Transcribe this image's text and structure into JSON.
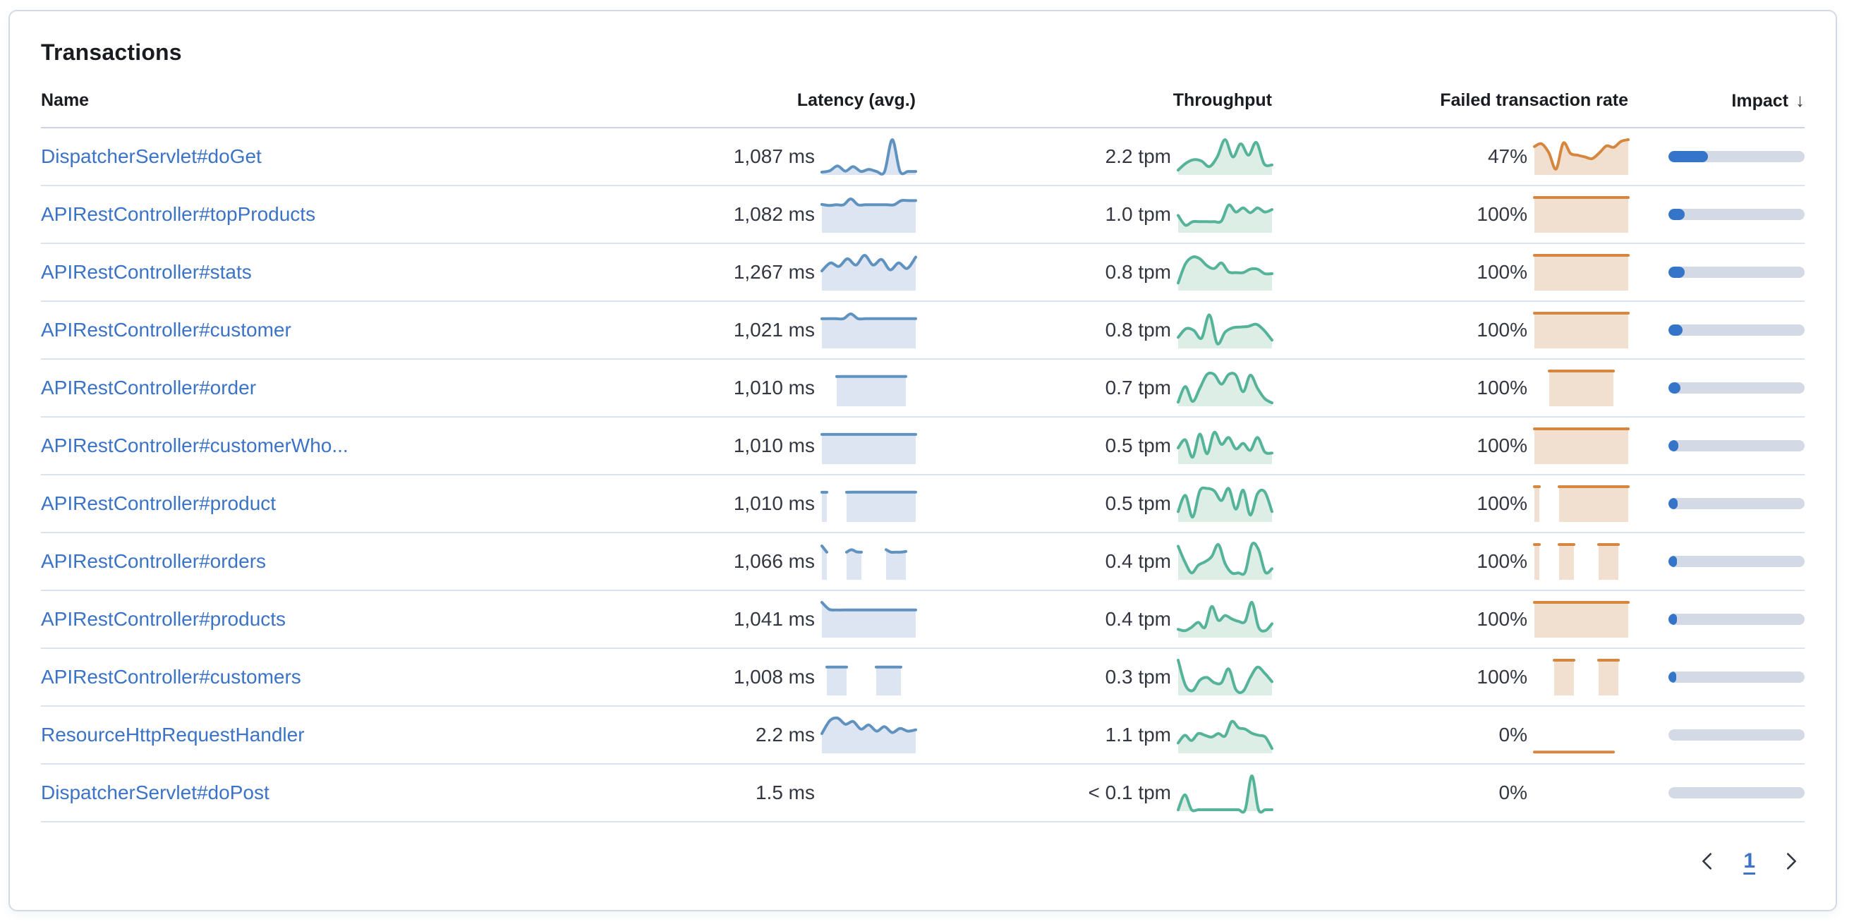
{
  "panel": {
    "title": "Transactions"
  },
  "colors": {
    "link": "#3b73c7",
    "latency_line": "#6092c0",
    "latency_fill": "#dce5f1",
    "throughput_line": "#54b399",
    "throughput_fill": "#ddeee7",
    "failed_line": "#d6873f",
    "failed_fill": "#f1e0cf",
    "impact_fill": "#3575c9",
    "impact_track": "#d3dae6"
  },
  "table": {
    "columns": [
      "Name",
      "Latency (avg.)",
      "Throughput",
      "Failed transaction rate",
      "Impact"
    ],
    "sort": {
      "column": "Impact",
      "direction": "desc",
      "icon": "↓"
    },
    "rows": [
      {
        "name": "DispatcherServlet#doGet",
        "latency": "1,087 ms",
        "throughput": "2.2 tpm",
        "failed_rate": "47%",
        "impact_pct": 29,
        "latency_spark": [
          0.06,
          0.1,
          0.24,
          0.09,
          0.22,
          0.08,
          0.14,
          0.08,
          0.07,
          1.0,
          0.08,
          0.08,
          0.08
        ],
        "throughput_spark": [
          0.12,
          0.32,
          0.42,
          0.38,
          0.22,
          0.5,
          1.0,
          0.5,
          0.88,
          0.55,
          0.92,
          0.3,
          0.27
        ],
        "failed_spark": [
          0.8,
          0.88,
          0.62,
          0.15,
          0.9,
          0.6,
          0.55,
          0.5,
          0.45,
          0.62,
          0.82,
          0.78,
          0.95,
          1.0
        ]
      },
      {
        "name": "APIRestController#topProducts",
        "latency": "1,082 ms",
        "throughput": "1.0 tpm",
        "failed_rate": "100%",
        "impact_pct": 12,
        "latency_spark": [
          0.8,
          0.77,
          0.79,
          0.79,
          0.96,
          0.79,
          0.79,
          0.79,
          0.79,
          0.79,
          0.79,
          0.91,
          0.91,
          0.91
        ],
        "throughput_spark": [
          0.48,
          0.2,
          0.3,
          0.3,
          0.3,
          0.3,
          0.32,
          0.78,
          0.58,
          0.7,
          0.56,
          0.7,
          0.58,
          0.65
        ],
        "failed_spark": [
          1,
          1
        ]
      },
      {
        "name": "APIRestController#stats",
        "latency": "1,267 ms",
        "throughput": "0.8 tpm",
        "failed_rate": "100%",
        "impact_pct": 12,
        "latency_spark": [
          0.55,
          0.78,
          0.68,
          0.9,
          0.72,
          1.0,
          0.72,
          0.88,
          0.58,
          0.78,
          0.62,
          0.95
        ],
        "throughput_spark": [
          0.2,
          0.75,
          0.95,
          0.9,
          0.7,
          0.62,
          0.78,
          0.52,
          0.5,
          0.5,
          0.6,
          0.6,
          0.47,
          0.47
        ],
        "failed_spark": [
          1,
          1
        ]
      },
      {
        "name": "APIRestController#customer",
        "latency": "1,021 ms",
        "throughput": "0.8 tpm",
        "failed_rate": "100%",
        "impact_pct": 10.5,
        "latency_spark": [
          0.84,
          0.84,
          0.84,
          0.84,
          0.98,
          0.84,
          0.84,
          0.84,
          0.84,
          0.84,
          0.84,
          0.84,
          0.84,
          0.84
        ],
        "throughput_spark": [
          0.3,
          0.55,
          0.5,
          0.28,
          0.95,
          0.12,
          0.45,
          0.58,
          0.6,
          0.62,
          0.68,
          0.5,
          0.22
        ],
        "failed_spark": [
          1,
          1
        ]
      },
      {
        "name": "APIRestController#order",
        "latency": "1,010 ms",
        "throughput": "0.7 tpm",
        "failed_rate": "100%",
        "impact_pct": 9,
        "latency_spark": [
          null,
          null,
          null,
          0.84,
          0.84,
          0.84,
          0.84,
          0.84,
          0.84,
          0.84,
          0.84,
          0.84,
          0.84,
          0.84,
          0.84,
          0.84,
          0.84,
          0.84,
          null,
          null
        ],
        "throughput_spark": [
          0.1,
          0.55,
          0.12,
          0.5,
          0.9,
          0.9,
          0.62,
          0.9,
          0.88,
          0.4,
          0.88,
          0.5,
          0.2,
          0.08
        ],
        "failed_spark": [
          null,
          null,
          null,
          1,
          1,
          1,
          1,
          1,
          1,
          1,
          1,
          1,
          1,
          1,
          1,
          1,
          1,
          null,
          null,
          null
        ]
      },
      {
        "name": "APIRestController#customerWho...",
        "latency": "1,010 ms",
        "throughput": "0.5 tpm",
        "failed_rate": "100%",
        "impact_pct": 7,
        "latency_spark": [
          0.84,
          0.84
        ],
        "throughput_spark": [
          0.45,
          0.68,
          0.18,
          0.85,
          0.28,
          0.9,
          0.55,
          0.75,
          0.42,
          0.58,
          0.38,
          0.75,
          0.33,
          0.3
        ],
        "failed_spark": [
          1,
          1
        ]
      },
      {
        "name": "APIRestController#product",
        "latency": "1,010 ms",
        "throughput": "0.5 tpm",
        "failed_rate": "100%",
        "impact_pct": 6.5,
        "latency_spark": [
          0.84,
          0.84,
          null,
          null,
          null,
          0.84,
          0.84,
          0.84,
          0.84,
          0.84,
          0.84,
          0.84,
          0.84,
          0.84,
          0.84,
          0.84,
          0.84,
          0.84,
          0.84,
          0.84
        ],
        "throughput_spark": [
          0.28,
          0.75,
          0.12,
          0.88,
          0.95,
          0.88,
          0.6,
          0.95,
          0.35,
          0.9,
          0.18,
          0.8,
          0.85,
          0.28
        ],
        "failed_spark": [
          1,
          1,
          null,
          null,
          null,
          1,
          1,
          1,
          1,
          1,
          1,
          1,
          1,
          1,
          1,
          1,
          1,
          1,
          1,
          1
        ]
      },
      {
        "name": "APIRestController#orders",
        "latency": "1,066 ms",
        "throughput": "0.4 tpm",
        "failed_rate": "100%",
        "impact_pct": 6,
        "latency_spark": [
          0.96,
          0.78,
          null,
          null,
          null,
          0.78,
          0.85,
          0.79,
          0.78,
          null,
          null,
          null,
          null,
          0.85,
          0.78,
          0.78,
          0.78,
          0.8,
          null,
          null
        ],
        "throughput_spark": [
          0.95,
          0.5,
          0.18,
          0.4,
          0.5,
          0.65,
          1.0,
          0.45,
          0.18,
          0.18,
          0.2,
          1.0,
          0.85,
          0.2,
          0.3
        ],
        "failed_spark": [
          1,
          1,
          null,
          null,
          null,
          1,
          1,
          1,
          1,
          null,
          null,
          null,
          null,
          1,
          1,
          1,
          1,
          1,
          null,
          null
        ]
      },
      {
        "name": "APIRestController#products",
        "latency": "1,041 ms",
        "throughput": "0.4 tpm",
        "failed_rate": "100%",
        "impact_pct": 6,
        "latency_spark": [
          1.0,
          0.8,
          0.78,
          0.78,
          0.78,
          0.78,
          0.78,
          0.78,
          0.78,
          0.78,
          0.78,
          0.78,
          0.78,
          0.78
        ],
        "throughput_spark": [
          0.22,
          0.18,
          0.28,
          0.42,
          0.28,
          0.88,
          0.48,
          0.62,
          0.52,
          0.45,
          0.45,
          1.0,
          0.28,
          0.18,
          0.38
        ],
        "failed_spark": [
          1,
          1
        ]
      },
      {
        "name": "APIRestController#customers",
        "latency": "1,008 ms",
        "throughput": "0.3 tpm",
        "failed_rate": "100%",
        "impact_pct": 5.5,
        "latency_spark": [
          null,
          0.8,
          0.8,
          0.8,
          0.8,
          0.8,
          null,
          null,
          null,
          null,
          null,
          0.8,
          0.8,
          0.8,
          0.8,
          0.8,
          0.8,
          null,
          null,
          null
        ],
        "throughput_spark": [
          1.0,
          0.28,
          0.12,
          0.42,
          0.5,
          0.35,
          0.35,
          0.75,
          0.15,
          0.1,
          0.5,
          0.8,
          0.62,
          0.38
        ],
        "failed_spark": [
          null,
          null,
          null,
          null,
          1,
          1,
          1,
          1,
          1,
          null,
          null,
          null,
          null,
          1,
          1,
          1,
          1,
          1,
          null,
          null
        ]
      },
      {
        "name": "ResourceHttpRequestHandler",
        "latency": "2.2 ms",
        "throughput": "1.1 tpm",
        "failed_rate": "0%",
        "impact_pct": 0,
        "latency_spark": [
          0.55,
          0.92,
          1.0,
          0.82,
          0.9,
          0.68,
          0.8,
          0.62,
          0.75,
          0.58,
          0.7,
          0.62,
          0.66
        ],
        "throughput_spark": [
          0.28,
          0.5,
          0.35,
          0.55,
          0.5,
          0.45,
          0.55,
          0.48,
          0.9,
          0.72,
          0.68,
          0.56,
          0.5,
          0.45,
          0.12
        ],
        "failed_spark": [
          0.015,
          0.015,
          0.015,
          0.015,
          0.015,
          0.015,
          0.015,
          0.015,
          0.015,
          0.015,
          0.015,
          0.015,
          0.015,
          0.015,
          0.015,
          0.015,
          0.015,
          null,
          null,
          null
        ]
      },
      {
        "name": "DispatcherServlet#doPost",
        "latency": "1.5 ms",
        "throughput": "< 0.1 tpm",
        "failed_rate": "0%",
        "impact_pct": 0,
        "latency_spark": [],
        "throughput_spark": [
          0.02,
          0.45,
          0.02,
          0.02,
          0.02,
          0.02,
          0.02,
          0.02,
          0.02,
          0.02,
          0.02,
          1.0,
          0.02,
          0.02,
          0.02
        ],
        "failed_spark": []
      }
    ]
  },
  "pagination": {
    "previous": "previous-page",
    "current_page": "1",
    "next": "next-page"
  }
}
